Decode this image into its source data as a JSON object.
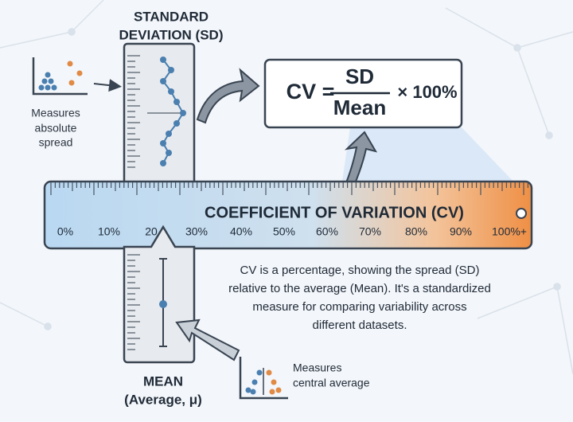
{
  "sd": {
    "title": [
      "STANDARD",
      "DEVIATION (SD)"
    ],
    "note": [
      "Measures",
      "absolute",
      "spread"
    ]
  },
  "formula": {
    "lhs": "CV =",
    "numerator": "SD",
    "denominator": "Mean",
    "factor": "× 100%"
  },
  "ruler": {
    "title": "COEFFICIENT OF VARIATION (CV)",
    "labels": [
      "0%",
      "10%",
      "20",
      "30%",
      "40%",
      "50%",
      "60%",
      "70%",
      "80%",
      "90%",
      "100%+"
    ]
  },
  "description": [
    "CV is a percentage, showing the spread (SD)",
    "relative to the average (Mean). It's a standardized",
    "measure for comparing variability across",
    "different datasets."
  ],
  "mean": {
    "title": [
      "MEAN",
      "(Average, μ)"
    ],
    "note": [
      "Measures",
      "central average"
    ]
  }
}
